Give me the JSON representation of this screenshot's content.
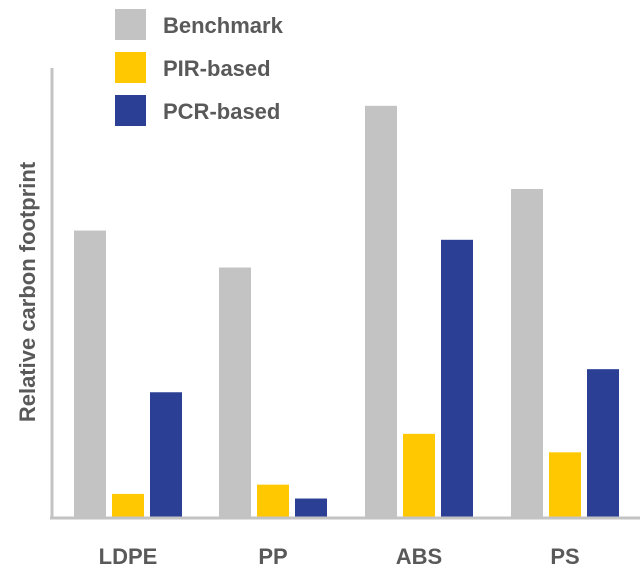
{
  "chart_data": {
    "type": "bar",
    "title": "",
    "xlabel": "",
    "ylabel": "Relative carbon footprint",
    "categories": [
      "LDPE",
      "PP",
      "ABS",
      "PS"
    ],
    "series": [
      {
        "name": "Benchmark",
        "color": "#c3c3c3",
        "values": [
          0.62,
          0.54,
          0.89,
          0.71
        ]
      },
      {
        "name": "PIR-based",
        "color": "#ffc800",
        "values": [
          0.05,
          0.07,
          0.18,
          0.14
        ]
      },
      {
        "name": "PCR-based",
        "color": "#2b3f94",
        "values": [
          0.27,
          0.04,
          0.6,
          0.32
        ]
      }
    ],
    "ylim": [
      0,
      1
    ],
    "y_ticks_shown": false,
    "grid": false,
    "legend": {
      "placement": "top-left"
    },
    "axis_color": "#c3c3c3"
  }
}
